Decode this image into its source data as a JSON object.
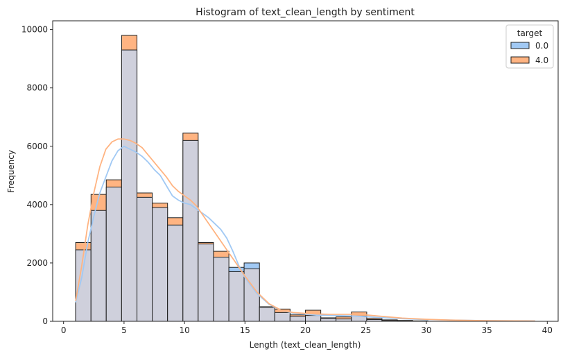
{
  "chart_data": {
    "type": "histogram",
    "title": "Histogram of text_clean_length by sentiment",
    "xlabel": "Length (text_clean_length)",
    "ylabel": "Frequency",
    "xlim": [
      -0.9,
      40.9
    ],
    "ylim": [
      0,
      10300
    ],
    "xticks": [
      0,
      5,
      10,
      15,
      20,
      25,
      30,
      35,
      40
    ],
    "yticks": [
      0,
      2000,
      4000,
      6000,
      8000,
      10000
    ],
    "grid": false,
    "legend": {
      "title": "target",
      "placement": "top-right"
    },
    "bins": [
      {
        "start": 1.0,
        "end": 2.27
      },
      {
        "start": 2.27,
        "end": 3.53
      },
      {
        "start": 3.53,
        "end": 4.8
      },
      {
        "start": 4.8,
        "end": 6.07
      },
      {
        "start": 6.07,
        "end": 7.33
      },
      {
        "start": 7.33,
        "end": 8.6
      },
      {
        "start": 8.6,
        "end": 9.87
      },
      {
        "start": 9.87,
        "end": 11.13
      },
      {
        "start": 11.13,
        "end": 12.4
      },
      {
        "start": 12.4,
        "end": 13.67
      },
      {
        "start": 13.67,
        "end": 14.93
      },
      {
        "start": 14.93,
        "end": 16.2
      },
      {
        "start": 16.2,
        "end": 17.47
      },
      {
        "start": 17.47,
        "end": 18.73
      },
      {
        "start": 18.73,
        "end": 20.0
      },
      {
        "start": 20.0,
        "end": 21.27
      },
      {
        "start": 21.27,
        "end": 22.53
      },
      {
        "start": 22.53,
        "end": 23.8
      },
      {
        "start": 23.8,
        "end": 25.07
      },
      {
        "start": 25.07,
        "end": 26.33
      },
      {
        "start": 26.33,
        "end": 27.6
      },
      {
        "start": 27.6,
        "end": 28.87
      },
      {
        "start": 28.87,
        "end": 30.13
      }
    ],
    "series": [
      {
        "name": "0.0",
        "color": "#a1c9f4",
        "values": [
          2450,
          3800,
          4600,
          9300,
          4250,
          3900,
          3300,
          6200,
          2650,
          2200,
          1850,
          2000,
          480,
          300,
          170,
          200,
          100,
          80,
          180,
          60,
          30,
          20,
          10
        ],
        "kde": [
          [
            1,
            650
          ],
          [
            1.5,
            1500
          ],
          [
            2,
            2700
          ],
          [
            2.5,
            3600
          ],
          [
            3,
            4400
          ],
          [
            3.5,
            4950
          ],
          [
            4,
            5500
          ],
          [
            4.5,
            5850
          ],
          [
            5,
            6000
          ],
          [
            5.5,
            5900
          ],
          [
            6,
            5800
          ],
          [
            6.5,
            5650
          ],
          [
            7,
            5450
          ],
          [
            7.5,
            5200
          ],
          [
            8,
            5000
          ],
          [
            8.5,
            4650
          ],
          [
            9,
            4300
          ],
          [
            9.5,
            4150
          ],
          [
            10,
            4050
          ],
          [
            10.5,
            4000
          ],
          [
            11,
            3850
          ],
          [
            11.5,
            3700
          ],
          [
            12,
            3550
          ],
          [
            12.5,
            3350
          ],
          [
            13,
            3150
          ],
          [
            13.5,
            2850
          ],
          [
            14,
            2400
          ],
          [
            14.5,
            1900
          ],
          [
            15,
            1500
          ],
          [
            16,
            950
          ],
          [
            17,
            580
          ],
          [
            18,
            380
          ],
          [
            19,
            280
          ],
          [
            20,
            240
          ],
          [
            21,
            210
          ],
          [
            22,
            200
          ],
          [
            23,
            190
          ],
          [
            24,
            180
          ],
          [
            25,
            160
          ],
          [
            26,
            130
          ],
          [
            28,
            90
          ],
          [
            30,
            60
          ],
          [
            32,
            40
          ],
          [
            35,
            20
          ],
          [
            39,
            10
          ]
        ]
      },
      {
        "name": "4.0",
        "color": "#ffb482",
        "values": [
          2700,
          4350,
          4850,
          9800,
          4400,
          4050,
          3550,
          6450,
          2700,
          2400,
          1700,
          1800,
          500,
          420,
          220,
          380,
          120,
          150,
          320,
          100,
          50,
          30,
          15
        ],
        "kde": [
          [
            1,
            700
          ],
          [
            1.5,
            1900
          ],
          [
            2,
            3300
          ],
          [
            2.5,
            4400
          ],
          [
            3,
            5300
          ],
          [
            3.5,
            5900
          ],
          [
            4,
            6150
          ],
          [
            4.5,
            6250
          ],
          [
            5,
            6250
          ],
          [
            5.5,
            6200
          ],
          [
            6,
            6100
          ],
          [
            6.5,
            5950
          ],
          [
            7,
            5700
          ],
          [
            7.5,
            5450
          ],
          [
            8,
            5200
          ],
          [
            8.5,
            4950
          ],
          [
            9,
            4650
          ],
          [
            9.5,
            4450
          ],
          [
            10,
            4300
          ],
          [
            10.5,
            4150
          ],
          [
            11,
            3950
          ],
          [
            11.5,
            3650
          ],
          [
            12,
            3350
          ],
          [
            12.5,
            3050
          ],
          [
            13,
            2750
          ],
          [
            13.5,
            2450
          ],
          [
            14,
            2150
          ],
          [
            14.5,
            1850
          ],
          [
            15,
            1550
          ],
          [
            16,
            1000
          ],
          [
            17,
            600
          ],
          [
            18,
            380
          ],
          [
            19,
            300
          ],
          [
            20,
            270
          ],
          [
            21,
            250
          ],
          [
            22,
            240
          ],
          [
            23,
            240
          ],
          [
            24,
            240
          ],
          [
            25,
            220
          ],
          [
            26,
            180
          ],
          [
            28,
            110
          ],
          [
            30,
            70
          ],
          [
            32,
            40
          ],
          [
            35,
            20
          ],
          [
            39,
            10
          ]
        ]
      }
    ],
    "overlap_color": "#cfd0dc"
  }
}
